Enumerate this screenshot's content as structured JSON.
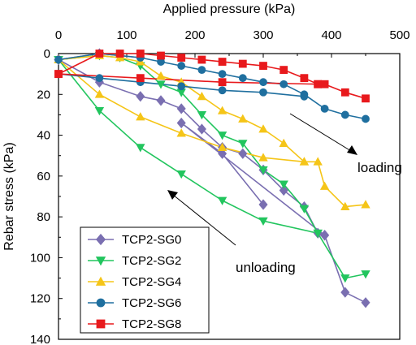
{
  "chart_data": {
    "type": "line",
    "xlabel": "Applied pressure (kPa)",
    "ylabel": "Rebar stress (kPa)",
    "xlim": [
      0,
      500
    ],
    "ylim": [
      0,
      140
    ],
    "xticks": [
      "0",
      "100",
      "200",
      "300",
      "400",
      "500"
    ],
    "yticks": [
      "0",
      "20",
      "40",
      "60",
      "80",
      "100",
      "120",
      "140"
    ],
    "x_axis_position": "top",
    "y_axis_inverted": true,
    "grid": false,
    "legend_position": "bottom-left",
    "annotations": [
      {
        "text": "loading"
      },
      {
        "text": "unloading"
      }
    ],
    "series": [
      {
        "name": "TCP2-SG0",
        "color": "#7a6fb1",
        "marker": "diamond",
        "loading": [
          [
            0,
            3
          ],
          [
            60,
            0
          ],
          [
            90,
            1
          ],
          [
            120,
            2
          ]
        ],
        "peak": [
          [
            390,
            89
          ],
          [
            420,
            117
          ],
          [
            450,
            122
          ]
        ],
        "unloading": [
          [
            0,
            3
          ],
          [
            60,
            14
          ],
          [
            120,
            21
          ],
          [
            150,
            23
          ],
          [
            180,
            27
          ],
          [
            210,
            37
          ],
          [
            240,
            46
          ],
          [
            270,
            49
          ],
          [
            300,
            57
          ],
          [
            330,
            67
          ],
          [
            360,
            75
          ],
          [
            380,
            88
          ],
          [
            390,
            89
          ],
          [
            180,
            34
          ],
          [
            240,
            49
          ],
          [
            300,
            74
          ]
        ]
      },
      {
        "name": "TCP2-SG2",
        "color": "#22c55e",
        "marker": "triangle-down",
        "loading": [
          [
            0,
            3
          ],
          [
            60,
            1
          ],
          [
            90,
            2
          ],
          [
            120,
            6
          ],
          [
            150,
            15
          ],
          [
            180,
            19
          ],
          [
            210,
            30
          ],
          [
            240,
            40
          ],
          [
            270,
            44
          ],
          [
            300,
            57
          ],
          [
            330,
            64
          ],
          [
            360,
            76
          ],
          [
            380,
            88
          ],
          [
            420,
            110
          ],
          [
            450,
            108
          ]
        ],
        "unloading": [
          [
            0,
            3
          ],
          [
            60,
            28
          ],
          [
            120,
            46
          ],
          [
            180,
            59
          ],
          [
            240,
            72
          ],
          [
            300,
            82
          ],
          [
            380,
            88
          ]
        ]
      },
      {
        "name": "TCP2-SG4",
        "color": "#f5c518",
        "marker": "triangle-up",
        "loading": [
          [
            0,
            3
          ],
          [
            60,
            1
          ],
          [
            90,
            2
          ],
          [
            120,
            4
          ],
          [
            150,
            11
          ],
          [
            180,
            14
          ],
          [
            210,
            21
          ],
          [
            240,
            28
          ],
          [
            270,
            32
          ],
          [
            300,
            37
          ],
          [
            330,
            44
          ],
          [
            360,
            53
          ],
          [
            380,
            53
          ],
          [
            390,
            65
          ],
          [
            420,
            75
          ],
          [
            450,
            74
          ]
        ],
        "unloading": [
          [
            0,
            3
          ],
          [
            60,
            20
          ],
          [
            120,
            31
          ],
          [
            180,
            39
          ],
          [
            240,
            46
          ],
          [
            300,
            51
          ],
          [
            360,
            53
          ]
        ]
      },
      {
        "name": "TCP2-SG6",
        "color": "#1f6f9f",
        "marker": "circle",
        "loading": [
          [
            0,
            3
          ],
          [
            60,
            0
          ],
          [
            120,
            2
          ],
          [
            150,
            4
          ],
          [
            180,
            6
          ],
          [
            210,
            8
          ],
          [
            240,
            10
          ],
          [
            270,
            12
          ],
          [
            300,
            14
          ],
          [
            330,
            15
          ],
          [
            360,
            20
          ],
          [
            390,
            27
          ],
          [
            420,
            30
          ],
          [
            450,
            32
          ]
        ],
        "unloading": [
          [
            0,
            10
          ],
          [
            60,
            12
          ],
          [
            120,
            14
          ],
          [
            180,
            16
          ],
          [
            240,
            18
          ],
          [
            300,
            19
          ],
          [
            360,
            21
          ]
        ]
      },
      {
        "name": "TCP2-SG8",
        "color": "#e8191c",
        "marker": "square",
        "loading": [
          [
            0,
            10
          ],
          [
            60,
            0
          ],
          [
            90,
            0
          ],
          [
            120,
            0
          ],
          [
            150,
            1
          ],
          [
            180,
            2
          ],
          [
            210,
            3
          ],
          [
            240,
            4
          ],
          [
            270,
            5
          ],
          [
            300,
            6
          ],
          [
            330,
            8
          ],
          [
            360,
            12
          ],
          [
            380,
            15
          ],
          [
            390,
            15
          ],
          [
            420,
            19
          ],
          [
            450,
            22
          ]
        ],
        "unloading": [
          [
            0,
            10
          ],
          [
            120,
            12
          ],
          [
            240,
            14
          ],
          [
            380,
            15
          ]
        ]
      }
    ]
  }
}
